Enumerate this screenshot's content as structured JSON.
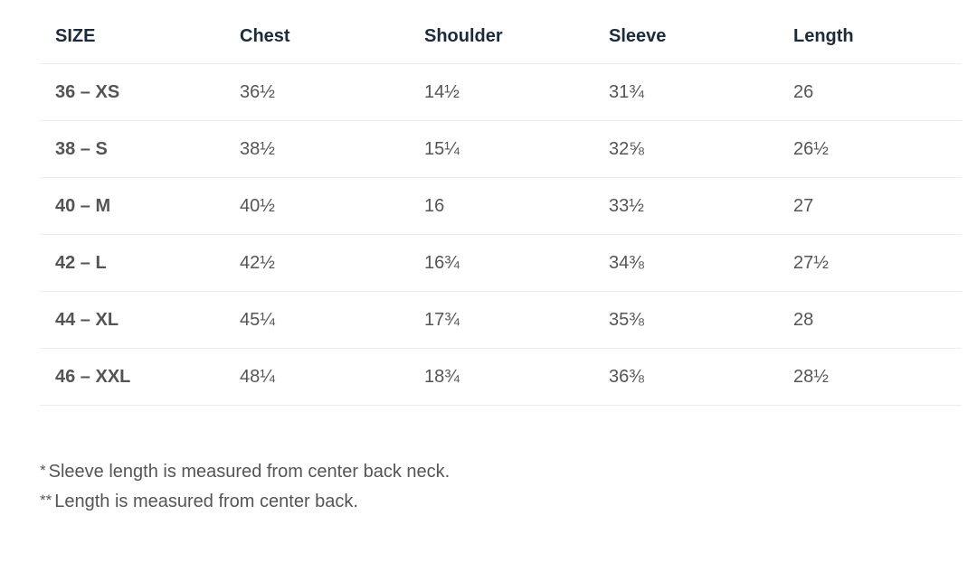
{
  "table": {
    "headers": [
      "SIZE",
      "Chest",
      "Shoulder",
      "Sleeve",
      "Length"
    ],
    "rows": [
      [
        "36 – XS",
        "36½",
        "14½",
        "31¾",
        "26"
      ],
      [
        "38 – S",
        "38½",
        "15¼",
        "32⅝",
        "26½"
      ],
      [
        "40 – M",
        "40½",
        "16",
        "33½",
        "27"
      ],
      [
        "42 – L",
        "42½",
        "16¾",
        "34⅜",
        "27½"
      ],
      [
        "44 – XL",
        "45¼",
        "17¾",
        "35⅜",
        "28"
      ],
      [
        "46 – XXL",
        "48¼",
        "18¾",
        "36⅜",
        "28½"
      ]
    ]
  },
  "notes": [
    {
      "marker": "*",
      "text": "Sleeve length is measured from center back neck."
    },
    {
      "marker": "**",
      "text": "Length is measured from center back."
    }
  ]
}
